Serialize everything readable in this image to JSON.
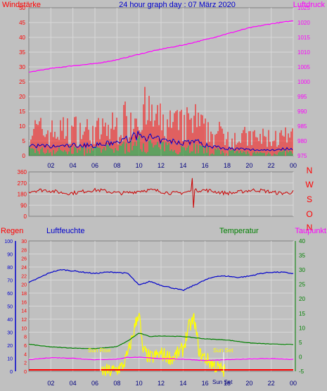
{
  "header": {
    "left_label": "Windstärke",
    "title": "24 hour graph day : 07 März 2020",
    "right_label": "Luftdruck"
  },
  "direction_labels": [
    "N",
    "W",
    "S",
    "O",
    "N"
  ],
  "bottom_header": {
    "regen": "Regen",
    "luftfeuchte": "Luftfeuchte",
    "temperatur": "Temperatur",
    "taupunkt": "Taupunkt"
  },
  "sun_labels": {
    "sun_rise": "Sun Rise",
    "sun_set": "Sun Set",
    "bottom": "Sun Set"
  },
  "colors": {
    "wind_gust": "#ff0000",
    "wind_avg": "#0000cc",
    "wind_green": "#008000",
    "pressure": "#ff00ff",
    "direction": "#cc0000",
    "humidity": "#0000cc",
    "temperature": "#008000",
    "dewpoint": "#ff00ff",
    "solar": "#ffff00",
    "rain": "#ff0000",
    "background": "#c0c0c0"
  },
  "chart_data": [
    {
      "type": "bar",
      "name": "wind",
      "x_ticks": [
        "02",
        "04",
        "06",
        "08",
        "10",
        "12",
        "14",
        "16",
        "18",
        "20",
        "22",
        "00"
      ],
      "ylim_left": [
        0,
        50
      ],
      "ylim_right": [
        975,
        1025
      ],
      "y_ticks_left": [
        0,
        5,
        10,
        15,
        20,
        25,
        30,
        35,
        40,
        45,
        50
      ],
      "y_ticks_right": [
        975,
        980,
        985,
        990,
        995,
        1000,
        1005,
        1010,
        1015,
        1020,
        1025
      ],
      "pressure_points": [
        [
          0,
          1003.2
        ],
        [
          2,
          1004.5
        ],
        [
          4,
          1005.4
        ],
        [
          6,
          1006.1
        ],
        [
          8,
          1007.4
        ],
        [
          10,
          1009.3
        ],
        [
          12,
          1011.0
        ],
        [
          14,
          1012.4
        ],
        [
          16,
          1014.2
        ],
        [
          18,
          1016.2
        ],
        [
          20,
          1018.2
        ],
        [
          22,
          1019.6
        ],
        [
          24,
          1020.6
        ]
      ],
      "gust_profile": [
        [
          0,
          9
        ],
        [
          2,
          8
        ],
        [
          4,
          9
        ],
        [
          6,
          8
        ],
        [
          8,
          10
        ],
        [
          9.5,
          14
        ],
        [
          10,
          16
        ],
        [
          11,
          13
        ],
        [
          12,
          11
        ],
        [
          14,
          10
        ],
        [
          15,
          12
        ],
        [
          16,
          8
        ],
        [
          18,
          7
        ],
        [
          20,
          6
        ],
        [
          22,
          6
        ],
        [
          24,
          6
        ]
      ],
      "avg_profile": [
        [
          0,
          3.5
        ],
        [
          2,
          3
        ],
        [
          4,
          3.5
        ],
        [
          6,
          3.5
        ],
        [
          8,
          4.5
        ],
        [
          10,
          7
        ],
        [
          11,
          6
        ],
        [
          12,
          5
        ],
        [
          14,
          4.5
        ],
        [
          15,
          5
        ],
        [
          16,
          3.5
        ],
        [
          18,
          2.5
        ],
        [
          20,
          2
        ],
        [
          22,
          2
        ],
        [
          24,
          2.5
        ]
      ]
    },
    {
      "type": "line",
      "name": "wind-direction",
      "ylim": [
        0,
        360
      ],
      "y_ticks": [
        0,
        90,
        180,
        270,
        360
      ],
      "mean_direction": 200
    },
    {
      "type": "line",
      "name": "humidity-temperature",
      "ylim_left_regen": [
        0,
        30
      ],
      "ylim_left_humidity": [
        0,
        100
      ],
      "ylim_right": [
        -5,
        40
      ],
      "y_ticks_regen": [
        0,
        2,
        4,
        6,
        8,
        10,
        12,
        14,
        16,
        18,
        20,
        22,
        24,
        26,
        28,
        30
      ],
      "y_ticks_humidity": [
        0,
        10,
        20,
        30,
        40,
        50,
        60,
        70,
        80,
        90,
        100
      ],
      "y_ticks_right": [
        -5,
        0,
        5,
        10,
        15,
        20,
        25,
        30,
        35,
        40
      ],
      "humidity_points": [
        [
          0,
          68
        ],
        [
          1,
          72
        ],
        [
          2,
          76
        ],
        [
          3,
          78
        ],
        [
          4,
          77
        ],
        [
          5,
          76
        ],
        [
          6,
          75
        ],
        [
          7,
          76
        ],
        [
          8,
          76
        ],
        [
          9,
          75
        ],
        [
          10,
          66
        ],
        [
          11,
          69
        ],
        [
          12,
          66
        ],
        [
          13,
          64
        ],
        [
          14,
          62
        ],
        [
          15,
          66
        ],
        [
          16,
          70
        ],
        [
          17,
          73
        ],
        [
          18,
          73
        ],
        [
          19,
          72
        ],
        [
          20,
          73
        ],
        [
          21,
          75
        ],
        [
          22,
          76
        ],
        [
          23,
          76
        ],
        [
          24,
          75
        ]
      ],
      "temperature_points": [
        [
          0,
          4.3
        ],
        [
          2,
          3.4
        ],
        [
          4,
          3.0
        ],
        [
          6,
          2.8
        ],
        [
          8,
          3.5
        ],
        [
          9,
          5.5
        ],
        [
          10,
          8.2
        ],
        [
          11,
          7.0
        ],
        [
          12,
          7.2
        ],
        [
          14,
          7.0
        ],
        [
          16,
          6.2
        ],
        [
          18,
          5.8
        ],
        [
          20,
          4.8
        ],
        [
          22,
          4.4
        ],
        [
          24,
          4.2
        ]
      ],
      "dewpoint_points": [
        [
          0,
          -1.0
        ],
        [
          2,
          -0.3
        ],
        [
          4,
          -0.5
        ],
        [
          6,
          -1.0
        ],
        [
          8,
          -0.8
        ],
        [
          9,
          -0.2
        ],
        [
          10,
          -0.2
        ],
        [
          12,
          -0.6
        ],
        [
          14,
          -0.8
        ],
        [
          16,
          -1.3
        ],
        [
          18,
          -1.0
        ],
        [
          20,
          -0.7
        ],
        [
          22,
          -0.6
        ],
        [
          24,
          -0.9
        ]
      ],
      "solar_points": [
        [
          6.6,
          0
        ],
        [
          7.5,
          0
        ],
        [
          8.5,
          1
        ],
        [
          9,
          4
        ],
        [
          9.5,
          9
        ],
        [
          9.8,
          12
        ],
        [
          10,
          14
        ],
        [
          10.3,
          5
        ],
        [
          11,
          3
        ],
        [
          12,
          4
        ],
        [
          13,
          3
        ],
        [
          14,
          5
        ],
        [
          14.5,
          10
        ],
        [
          15,
          12
        ],
        [
          15.5,
          4
        ],
        [
          16,
          3
        ],
        [
          17,
          1
        ],
        [
          17.8,
          0
        ]
      ],
      "rain_total": 0
    }
  ]
}
